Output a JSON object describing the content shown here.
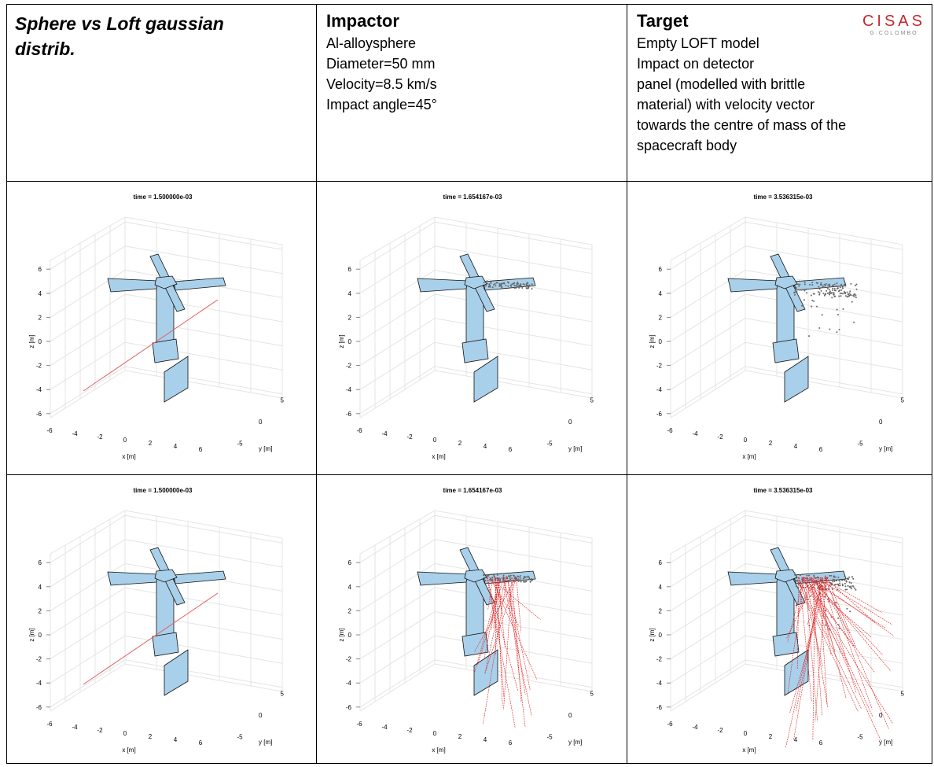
{
  "header": {
    "title": "Sphere vs Loft gaussian distrib.",
    "impactor": {
      "heading": "Impactor",
      "lines": [
        "Al-alloysphere",
        "Diameter=50 mm",
        "Velocity=8.5 km/s",
        "Impact angle=45°"
      ]
    },
    "target": {
      "heading": "Target",
      "lines": [
        "Empty LOFT model",
        "Impact on detector",
        "panel (modelled with brittle",
        "material) with velocity vector",
        "towards the centre of mass of the",
        "spacecraft body"
      ]
    },
    "logo": {
      "name": "CISAS",
      "subtitle": "G.COLOMBO"
    }
  },
  "axes": {
    "zlabel": "z [m]",
    "xlabel": "x [m]",
    "ylabel": "y [m]",
    "zticks": [
      6,
      4,
      2,
      0,
      -2,
      -4,
      -6
    ],
    "xticks": [
      -6,
      -4,
      -2,
      0,
      2,
      4,
      6
    ],
    "yticks": [
      5,
      0,
      -5
    ]
  },
  "plots": [
    {
      "title": "time = 1.500000e-03"
    },
    {
      "title": "time = 1.654167e-03"
    },
    {
      "title": "time = 3.536315e-03"
    },
    {
      "title": "time = 1.500000e-03"
    },
    {
      "title": "time = 1.654167e-03"
    },
    {
      "title": "time = 3.536315e-03"
    }
  ]
}
